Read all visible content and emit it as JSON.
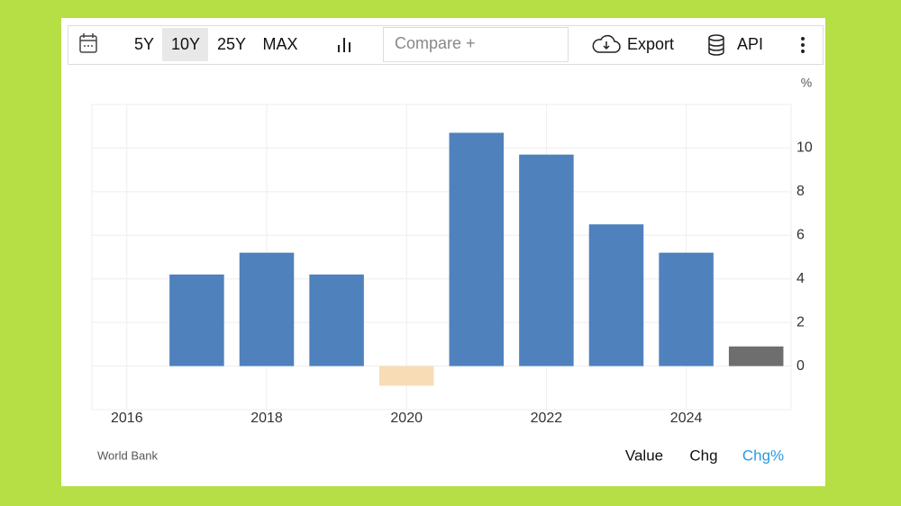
{
  "toolbar": {
    "ranges": [
      "5Y",
      "10Y",
      "25Y",
      "MAX"
    ],
    "compare": "Compare +",
    "export": "Export",
    "api": "API"
  },
  "chart_data": {
    "type": "bar",
    "unit": "%",
    "x": [
      2017,
      2018,
      2019,
      2020,
      2021,
      2022,
      2023,
      2024,
      2025
    ],
    "values": [
      4.2,
      5.2,
      4.2,
      -0.9,
      10.7,
      9.7,
      6.5,
      5.2,
      0.9
    ],
    "colors": [
      "#4f81bd",
      "#4f81bd",
      "#4f81bd",
      "#f8dcb5",
      "#4f81bd",
      "#4f81bd",
      "#4f81bd",
      "#4f81bd",
      "#6e6e6e"
    ],
    "xlim": [
      2015.5,
      2025.5
    ],
    "xticks": [
      2016,
      2018,
      2020,
      2022,
      2024
    ],
    "ylim": [
      -2,
      12
    ],
    "yticks": [
      0,
      2,
      4,
      6,
      8,
      10
    ],
    "grid": true
  },
  "footer": {
    "source": "World Bank",
    "modes": [
      "Value",
      "Chg",
      "Chg%"
    ]
  }
}
